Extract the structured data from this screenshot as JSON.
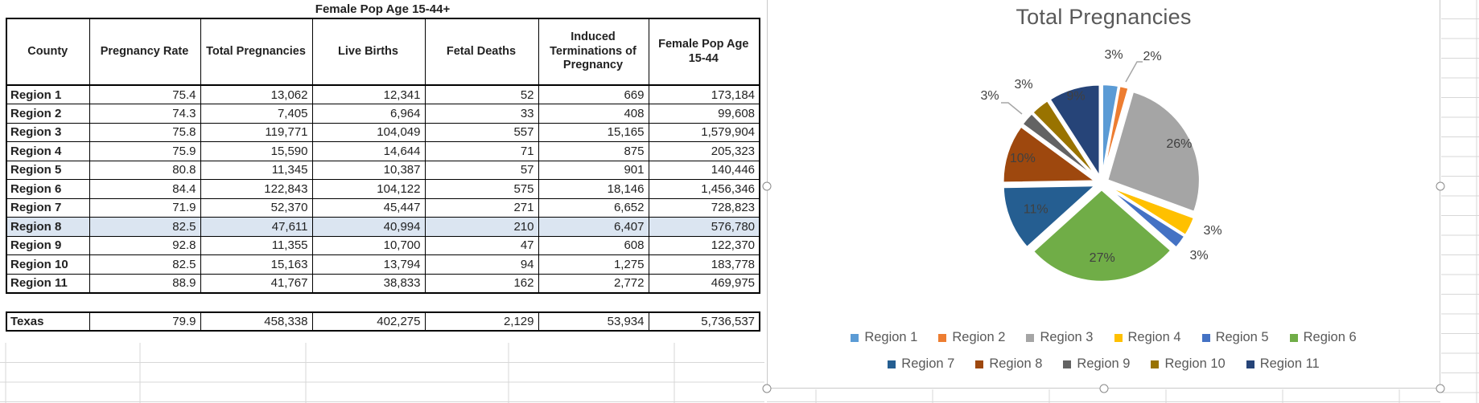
{
  "spreadsheet": {
    "table": {
      "title": "Female Pop Age 15-44+",
      "columns": [
        "County",
        "Pregnancy Rate",
        "Total Pregnancies",
        "Live Births",
        "Fetal Deaths",
        "Induced Terminations of Pregnancy",
        "Female Pop Age 15-44"
      ],
      "rows": [
        {
          "county": "Region 1",
          "values": [
            "75.4",
            "13,062",
            "12,341",
            "52",
            "669",
            "173,184"
          ],
          "highlighted": false
        },
        {
          "county": "Region 2",
          "values": [
            "74.3",
            "7,405",
            "6,964",
            "33",
            "408",
            "99,608"
          ],
          "highlighted": false
        },
        {
          "county": "Region 3",
          "values": [
            "75.8",
            "119,771",
            "104,049",
            "557",
            "15,165",
            "1,579,904"
          ],
          "highlighted": false
        },
        {
          "county": "Region 4",
          "values": [
            "75.9",
            "15,590",
            "14,644",
            "71",
            "875",
            "205,323"
          ],
          "highlighted": false
        },
        {
          "county": "Region 5",
          "values": [
            "80.8",
            "11,345",
            "10,387",
            "57",
            "901",
            "140,446"
          ],
          "highlighted": false
        },
        {
          "county": "Region 6",
          "values": [
            "84.4",
            "122,843",
            "104,122",
            "575",
            "18,146",
            "1,456,346"
          ],
          "highlighted": false
        },
        {
          "county": "Region 7",
          "values": [
            "71.9",
            "52,370",
            "45,447",
            "271",
            "6,652",
            "728,823"
          ],
          "highlighted": false
        },
        {
          "county": "Region 8",
          "values": [
            "82.5",
            "47,611",
            "40,994",
            "210",
            "6,407",
            "576,780"
          ],
          "highlighted": true
        },
        {
          "county": "Region 9",
          "values": [
            "92.8",
            "11,355",
            "10,700",
            "47",
            "608",
            "122,370"
          ],
          "highlighted": false
        },
        {
          "county": "Region 10",
          "values": [
            "82.5",
            "15,163",
            "13,794",
            "94",
            "1,275",
            "183,778"
          ],
          "highlighted": false
        },
        {
          "county": "Region 11",
          "values": [
            "88.9",
            "41,767",
            "38,833",
            "162",
            "2,772",
            "469,975"
          ],
          "highlighted": false
        }
      ],
      "total_row": {
        "county": "Texas",
        "values": [
          "79.9",
          "458,338",
          "402,275",
          "2,129",
          "53,934",
          "5,736,537"
        ]
      }
    }
  },
  "chart": {
    "selected": true
  },
  "chart_data": {
    "type": "pie",
    "title": "Total Pregnancies",
    "categories": [
      "Region 1",
      "Region 2",
      "Region 3",
      "Region 4",
      "Region 5",
      "Region 6",
      "Region 7",
      "Region 8",
      "Region 9",
      "Region 10",
      "Region 11"
    ],
    "values": [
      13062,
      7405,
      119771,
      15590,
      11345,
      122843,
      52370,
      47611,
      11355,
      15163,
      41767
    ],
    "labels_pct": [
      "3%",
      "2%",
      "26%",
      "3%",
      "3%",
      "27%",
      "11%",
      "10%",
      "3%",
      "3%",
      "9%"
    ],
    "colors": [
      "#5B9BD5",
      "#ED7D31",
      "#A5A5A5",
      "#FFC000",
      "#4472C4",
      "#70AD47",
      "#255E91",
      "#9E480E",
      "#636363",
      "#997300",
      "#264478"
    ],
    "total": 458338,
    "legend_position": "bottom",
    "label_color": "#404040",
    "title_color": "#595959"
  }
}
